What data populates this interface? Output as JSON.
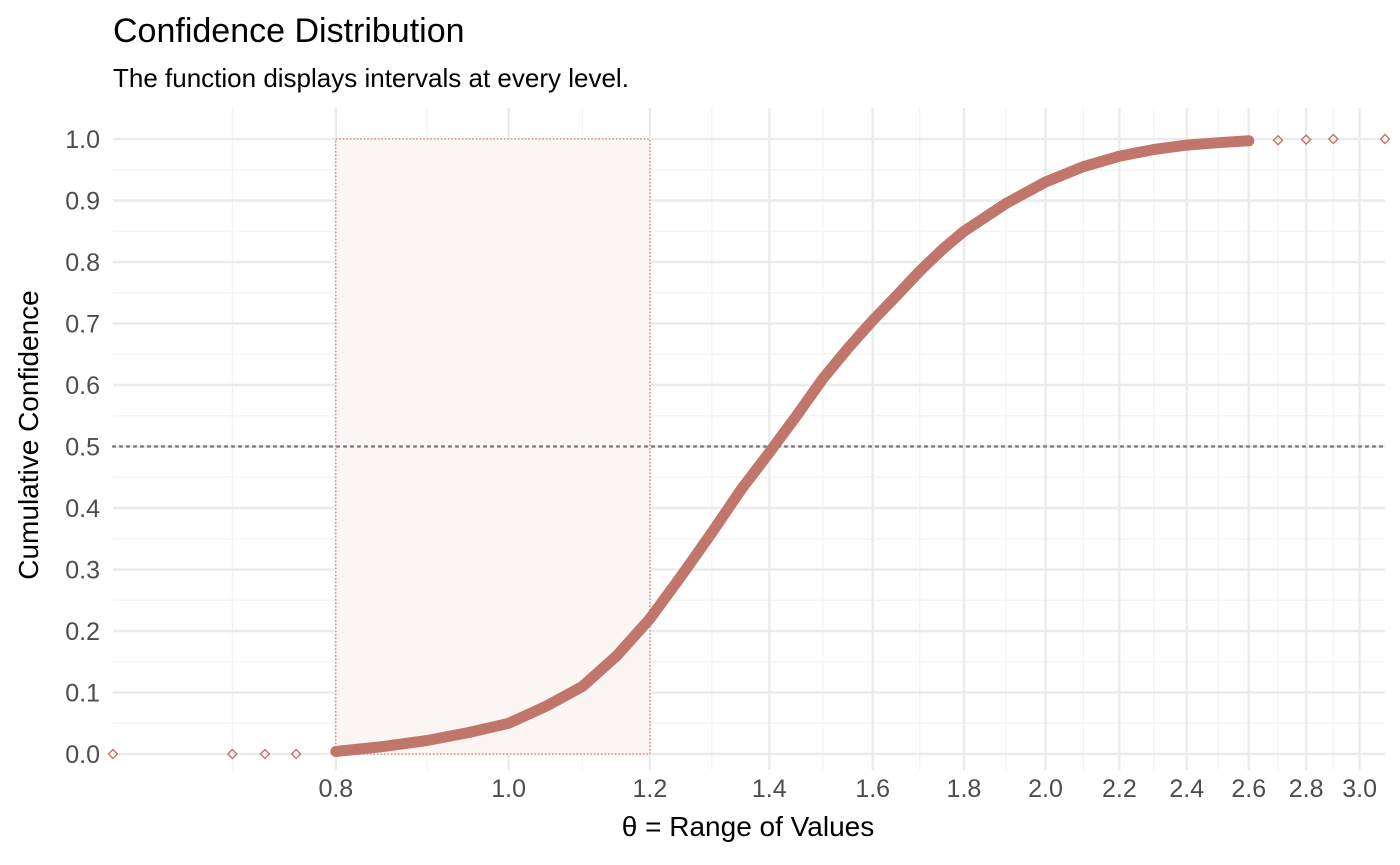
{
  "chart_data": {
    "type": "line",
    "title": "Confidence Distribution",
    "subtitle": "The function displays intervals at every level.",
    "xlabel": "θ =  Range of Values",
    "ylabel": "Cumulative Confidence",
    "x_scale": "log",
    "xlim": [
      0.6,
      3.1
    ],
    "ylim": [
      0,
      1
    ],
    "x_ticks": [
      "0.8",
      "1.0",
      "1.2",
      "1.4",
      "1.6",
      "1.8",
      "2.0",
      "2.2",
      "2.4",
      "2.6",
      "2.8",
      "3.0"
    ],
    "y_ticks": [
      "0.0",
      "0.1",
      "0.2",
      "0.3",
      "0.4",
      "0.5",
      "0.6",
      "0.7",
      "0.8",
      "0.9",
      "1.0"
    ],
    "reference_line_y": 0.5,
    "interval": {
      "x_low": 0.8,
      "x_high": 1.2,
      "y_low": 0,
      "y_high": 1
    },
    "series": [
      {
        "points": [
          [
            0.6,
            0.0
          ],
          [
            0.7,
            0.0
          ],
          [
            0.73,
            0.0
          ],
          [
            0.76,
            0.0
          ],
          [
            0.8,
            0.004
          ],
          [
            0.85,
            0.012
          ],
          [
            0.9,
            0.022
          ],
          [
            0.95,
            0.035
          ],
          [
            1.0,
            0.05
          ],
          [
            1.05,
            0.078
          ],
          [
            1.1,
            0.11
          ],
          [
            1.15,
            0.16
          ],
          [
            1.2,
            0.22
          ],
          [
            1.25,
            0.29
          ],
          [
            1.3,
            0.36
          ],
          [
            1.35,
            0.43
          ],
          [
            1.4,
            0.49
          ],
          [
            1.45,
            0.55
          ],
          [
            1.5,
            0.61
          ],
          [
            1.55,
            0.66
          ],
          [
            1.6,
            0.705
          ],
          [
            1.65,
            0.745
          ],
          [
            1.7,
            0.785
          ],
          [
            1.75,
            0.82
          ],
          [
            1.8,
            0.85
          ],
          [
            1.9,
            0.895
          ],
          [
            2.0,
            0.93
          ],
          [
            2.1,
            0.955
          ],
          [
            2.2,
            0.972
          ],
          [
            2.3,
            0.983
          ],
          [
            2.4,
            0.99
          ],
          [
            2.5,
            0.994
          ],
          [
            2.6,
            0.997
          ],
          [
            2.7,
            0.998
          ],
          [
            2.8,
            0.999
          ],
          [
            2.9,
            1.0
          ],
          [
            3.1,
            1.0
          ]
        ]
      }
    ],
    "colors": {
      "curve": "#c0766a",
      "points": "#c0766a",
      "interval_fill": "#fbf5f4",
      "interval_stroke": "#d9756b",
      "reference_line": "#7f7f7f"
    }
  }
}
